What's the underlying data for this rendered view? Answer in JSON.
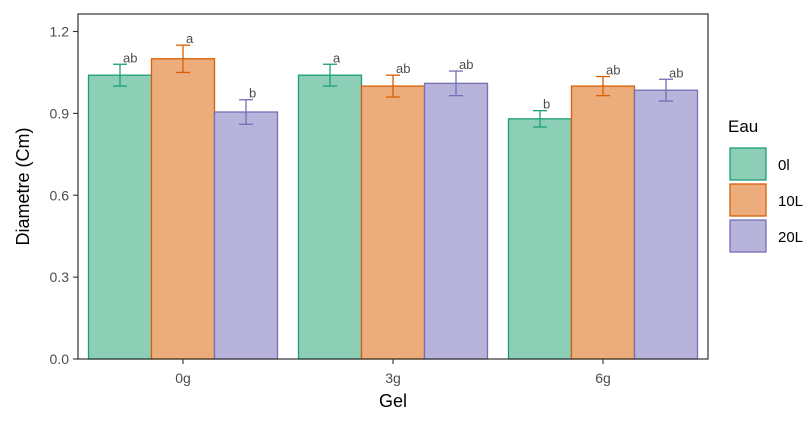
{
  "chart_data": {
    "type": "bar",
    "categories": [
      "0g",
      "3g",
      "6g"
    ],
    "series": [
      {
        "name": "0l",
        "values": [
          1.04,
          1.04,
          0.88
        ],
        "errors": [
          0.04,
          0.04,
          0.03
        ],
        "letters": [
          "ab",
          "a",
          "b"
        ],
        "fill": "#8dcfb6",
        "stroke": "#1b9e77"
      },
      {
        "name": "10L",
        "values": [
          1.1,
          1.0,
          1.0
        ],
        "errors": [
          0.05,
          0.04,
          0.035
        ],
        "letters": [
          "a",
          "ab",
          "ab"
        ],
        "fill": "#edac7c",
        "stroke": "#d95f02"
      },
      {
        "name": "20L",
        "values": [
          0.905,
          1.01,
          0.985
        ],
        "errors": [
          0.045,
          0.045,
          0.04
        ],
        "letters": [
          "b",
          "ab",
          "ab"
        ],
        "fill": "#b8b3da",
        "stroke": "#7570b3"
      }
    ],
    "xlabel": "Gel",
    "ylabel": "Diametre (Cm)",
    "ylim": [
      0,
      1.2
    ],
    "yticks": [
      "0.0",
      "0.3",
      "0.6",
      "0.9",
      "1.2"
    ],
    "legend": {
      "title": "Eau",
      "position": "right"
    },
    "grid": false
  }
}
